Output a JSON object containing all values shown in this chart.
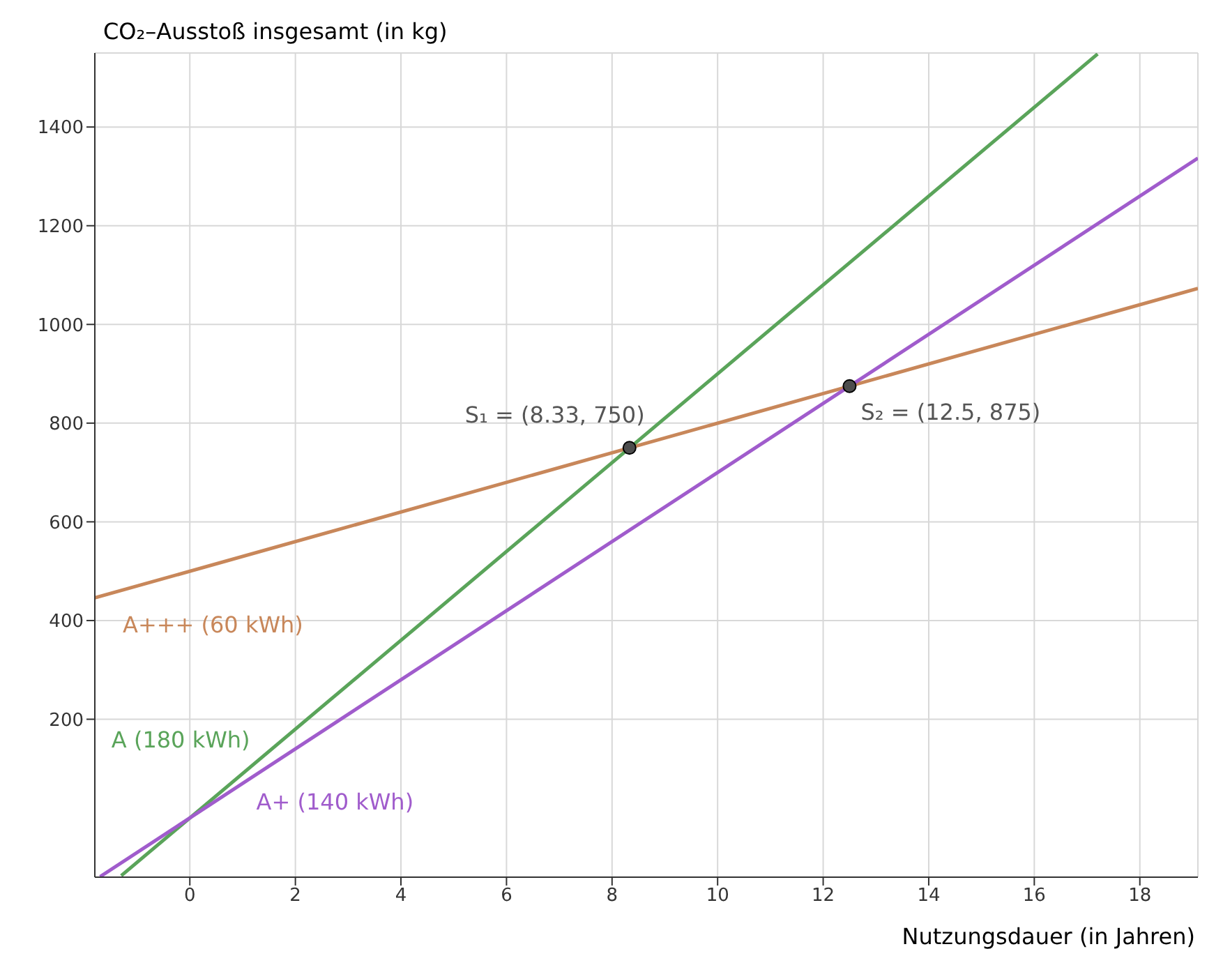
{
  "chart_data": {
    "type": "line",
    "xlabel": "Nutzungsdauer (in Jahren)",
    "ylabel": "CO₂–Ausstoß insgesamt (in kg)",
    "xlim": [
      -1.8,
      19.1
    ],
    "ylim": [
      -120,
      1550
    ],
    "xticks": [
      0,
      2,
      4,
      6,
      8,
      10,
      12,
      14,
      16,
      18
    ],
    "yticks": [
      200,
      400,
      600,
      800,
      1000,
      1200,
      1400
    ],
    "grid": true,
    "legend": false,
    "series": [
      {
        "name": "A+++ (60 kWh)",
        "color": "#c8875a",
        "x": [
          -1.8,
          19.1
        ],
        "values": [
          446,
          1073
        ]
      },
      {
        "name": "A (180 kWh)",
        "color": "#5aa45a",
        "x": [
          -1.3,
          17.2
        ],
        "values": [
          -117,
          1548
        ]
      },
      {
        "name": "A+ (140 kWh)",
        "color": "#a05ccc",
        "x": [
          -1.7,
          19.1
        ],
        "values": [
          -119,
          1337
        ]
      },
      {
        "type": "scatter",
        "color": "#4d4d4d",
        "marker": "circle",
        "x": [
          8.33,
          12.5
        ],
        "values": [
          750,
          875
        ]
      }
    ],
    "annotations": [
      {
        "text": "S₁ = (8.33, 750)",
        "x": 8.33,
        "y": 750
      },
      {
        "text": "S₂ = (12.5, 875)",
        "x": 12.5,
        "y": 875
      }
    ]
  }
}
